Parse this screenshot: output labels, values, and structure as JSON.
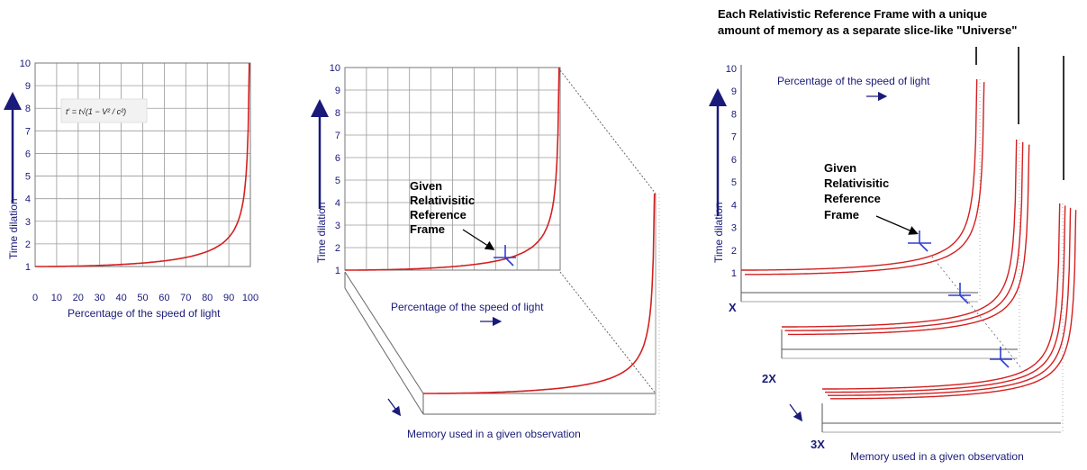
{
  "panel1": {
    "ylabel": "Time dilation",
    "xlabel": "Percentage of the speed of light",
    "formula": "t′ = t√(1 − V² / c²)",
    "xticks": [
      "0",
      "10",
      "20",
      "30",
      "40",
      "50",
      "60",
      "70",
      "80",
      "90",
      "100"
    ],
    "yticks": [
      "1",
      "2",
      "3",
      "4",
      "5",
      "6",
      "7",
      "8",
      "9",
      "10"
    ]
  },
  "panel2": {
    "ylabel": "Time dilation",
    "xlabel": "Percentage of the speed of light",
    "depth_label": "Memory used in a given observation",
    "yticks": [
      "1",
      "2",
      "3",
      "4",
      "5",
      "6",
      "7",
      "8",
      "9",
      "10"
    ],
    "annotation": [
      "Given",
      "Relativisitic",
      "Reference",
      "Frame"
    ]
  },
  "panel3": {
    "title_line1": "Each Relativistic Reference Frame with a unique",
    "title_line2": "amount of memory as a separate slice-like \"Universe\"",
    "ylabel": "Time dilation",
    "xlabel": "Percentage of the speed of light",
    "depth_label": "Memory used in a given observation",
    "yticks": [
      "1",
      "2",
      "3",
      "4",
      "5",
      "6",
      "7",
      "8",
      "9",
      "10"
    ],
    "annotation": [
      "Given",
      "Relativisitic",
      "Reference",
      "Frame"
    ],
    "slices": [
      "X",
      "2X",
      "3X"
    ]
  },
  "colors": {
    "curve": "#d42020",
    "axis_text": "#1a1a7a",
    "grid": "#9a9a9a",
    "cross": "#2f3fd0"
  },
  "chart_data": {
    "type": "line",
    "title": "",
    "xlabel": "Percentage of the speed of light",
    "ylabel": "Time dilation",
    "xlim": [
      0,
      100
    ],
    "ylim": [
      0,
      10
    ],
    "x": [
      0,
      10,
      20,
      30,
      40,
      50,
      60,
      70,
      80,
      85,
      90,
      95,
      98,
      99.5
    ],
    "values": [
      1.0,
      1.005,
      1.021,
      1.048,
      1.091,
      1.155,
      1.25,
      1.4,
      1.667,
      1.898,
      2.294,
      3.203,
      5.025,
      10.0
    ]
  }
}
